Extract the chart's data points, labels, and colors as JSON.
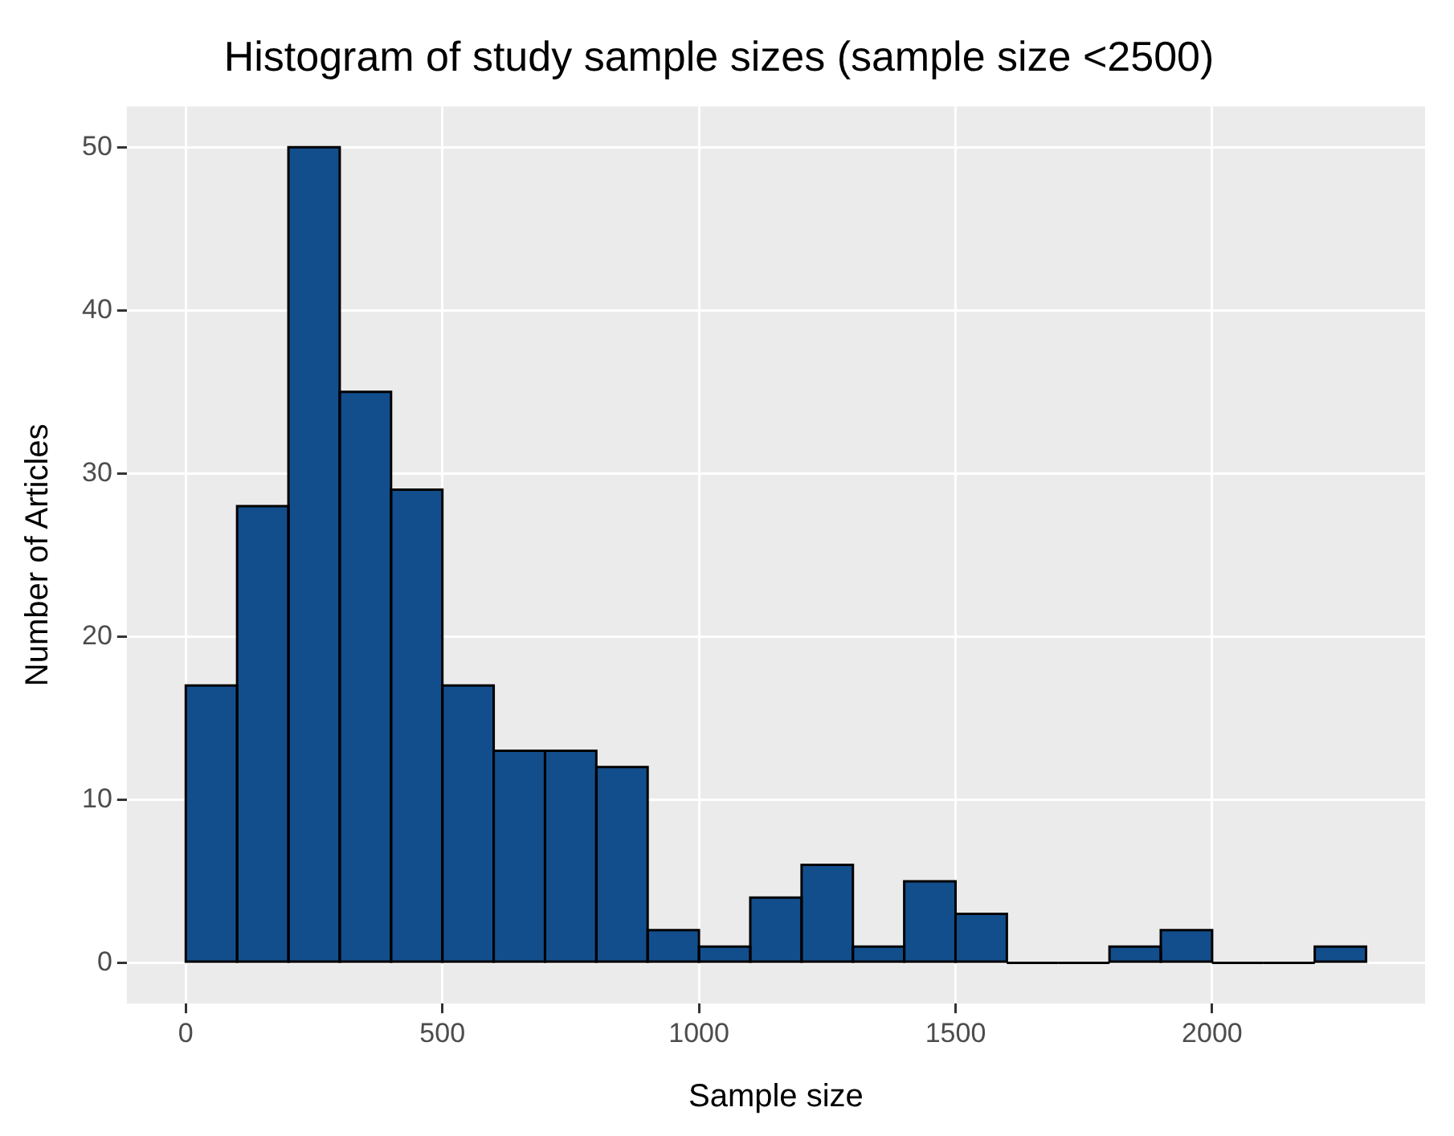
{
  "chart_data": {
    "type": "histogram",
    "title": "Histogram of study sample sizes (sample size <2500)",
    "xlabel": "Sample size",
    "ylabel": "Number of Articles",
    "bins": [
      0,
      100,
      200,
      300,
      400,
      500,
      600,
      700,
      800,
      900,
      1000,
      1100,
      1200,
      1300,
      1400,
      1500,
      1600,
      1700,
      1800,
      1900,
      2000,
      2100,
      2200,
      2300
    ],
    "values": [
      17,
      28,
      50,
      35,
      29,
      17,
      13,
      13,
      12,
      2,
      1,
      4,
      6,
      1,
      5,
      3,
      0,
      0,
      1,
      2,
      0,
      0,
      1
    ],
    "color": "#134e8c",
    "xlim": [
      -115,
      2415
    ],
    "xticks": [
      0,
      500,
      1000,
      1500,
      2000
    ],
    "ylim": [
      -2.5,
      52.5
    ],
    "yticks": [
      0,
      10,
      20,
      30,
      40,
      50
    ],
    "grid": true,
    "legend": false
  }
}
